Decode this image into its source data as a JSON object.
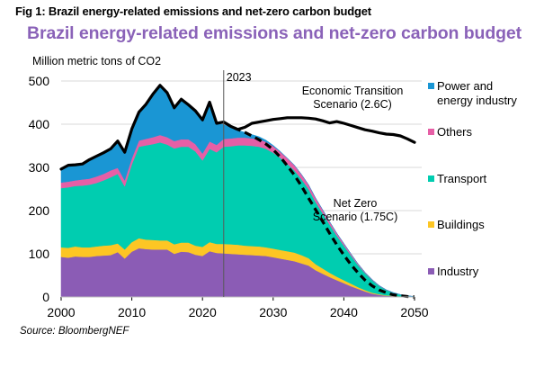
{
  "figure_label": "Fig 1: Brazil energy-related emissions and net-zero carbon budget",
  "source": "Source: BloombergNEF",
  "colors": {
    "title": "#8a62b8",
    "industry": "#8b5cb5",
    "buildings": "#fdc624",
    "transport": "#00cdb0",
    "others": "#e65fa6",
    "power": "#1a96d4",
    "total_line": "#000000",
    "grid": "#d9d9d9",
    "marker_line": "#595959"
  },
  "chart_data": {
    "type": "area",
    "title": "Brazil energy-related emissions and net-zero carbon budget",
    "xlabel": "",
    "ylabel": "Million metric tons of CO2",
    "xlim": [
      2000,
      2050
    ],
    "ylim": [
      0,
      500
    ],
    "x_ticks": [
      "2000",
      "2010",
      "2020",
      "2030",
      "2040",
      "2050"
    ],
    "y_ticks": [
      "0",
      "100",
      "200",
      "300",
      "400",
      "500"
    ],
    "grid": true,
    "legend_position": "right",
    "marker": {
      "x": 2023,
      "label": "2023"
    },
    "x": [
      2000,
      2001,
      2002,
      2003,
      2004,
      2005,
      2006,
      2007,
      2008,
      2009,
      2010,
      2011,
      2012,
      2013,
      2014,
      2015,
      2016,
      2017,
      2018,
      2019,
      2020,
      2021,
      2022,
      2023,
      2024,
      2025,
      2026,
      2027,
      2028,
      2029,
      2030,
      2031,
      2032,
      2033,
      2034,
      2035,
      2036,
      2037,
      2038,
      2039,
      2040,
      2041,
      2042,
      2043,
      2044,
      2045,
      2046,
      2047,
      2048,
      2049,
      2050
    ],
    "series": [
      {
        "name": "Industry",
        "key": "industry",
        "values": [
          93,
          91,
          94,
          93,
          93,
          95,
          96,
          97,
          104,
          89,
          105,
          113,
          111,
          110,
          110,
          110,
          100,
          105,
          104,
          98,
          95,
          106,
          102,
          101,
          100,
          99,
          98,
          97,
          96,
          95,
          92,
          89,
          86,
          83,
          78,
          73,
          62,
          54,
          46,
          39,
          32,
          25,
          19,
          13,
          8,
          5,
          3,
          2,
          1,
          0.5,
          0.2
        ]
      },
      {
        "name": "Buildings",
        "key": "buildings",
        "values": [
          22,
          23,
          23,
          22,
          22,
          22,
          23,
          23,
          20,
          21,
          22,
          23,
          22,
          22,
          21,
          21,
          22,
          21,
          22,
          21,
          21,
          21,
          21,
          22,
          22,
          22,
          21,
          21,
          21,
          20,
          20,
          20,
          20,
          20,
          19,
          17,
          14,
          12,
          10,
          8,
          7,
          6,
          4,
          3,
          2,
          1.5,
          1,
          0.7,
          0.4,
          0.2,
          0.1
        ]
      },
      {
        "name": "Transport",
        "key": "transport",
        "values": [
          137,
          140,
          140,
          143,
          145,
          147,
          151,
          157,
          161,
          146,
          180,
          212,
          218,
          222,
          227,
          222,
          222,
          222,
          222,
          218,
          200,
          216,
          212,
          225,
          227,
          230,
          232,
          232,
          231,
          228,
          222,
          213,
          202,
          190,
          176,
          160,
          144,
          128,
          111,
          95,
          80,
          65,
          51,
          39,
          29,
          19,
          12,
          7,
          4,
          2,
          0.5
        ]
      },
      {
        "name": "Others",
        "key": "others",
        "values": [
          13,
          13,
          13,
          14,
          14,
          15,
          15,
          16,
          14,
          14,
          14,
          14,
          15,
          16,
          17,
          17,
          17,
          17,
          17,
          17,
          16,
          17,
          17,
          18,
          18,
          18,
          18,
          17,
          17,
          16,
          15,
          14,
          13,
          12,
          11,
          10,
          9,
          8,
          7,
          6,
          5,
          4,
          3,
          2,
          1.5,
          1,
          0.7,
          0.5,
          0.3,
          0.2,
          0.1
        ]
      },
      {
        "name": "Power and energy industry",
        "key": "power",
        "values": [
          31,
          38,
          36,
          36,
          44,
          47,
          49,
          50,
          62,
          65,
          68,
          66,
          80,
          100,
          115,
          103,
          77,
          93,
          80,
          77,
          78,
          91,
          50,
          33,
          25,
          17,
          12,
          9,
          6,
          4,
          2,
          1,
          0.5,
          0,
          0,
          0,
          0,
          0,
          0,
          0,
          0,
          0,
          0,
          0,
          0,
          0,
          0,
          0,
          0,
          0,
          0
        ]
      }
    ],
    "scenario_lines": [
      {
        "name": "Economic Transition Scenario (2.6C)",
        "style": "solid",
        "x": [
          2000,
          2001,
          2002,
          2003,
          2004,
          2005,
          2006,
          2007,
          2008,
          2009,
          2010,
          2011,
          2012,
          2013,
          2014,
          2015,
          2016,
          2017,
          2018,
          2019,
          2020,
          2021,
          2022,
          2023,
          2024,
          2025,
          2026,
          2027,
          2028,
          2029,
          2030,
          2031,
          2032,
          2033,
          2034,
          2035,
          2036,
          2037,
          2038,
          2039,
          2040,
          2041,
          2042,
          2043,
          2044,
          2045,
          2046,
          2047,
          2048,
          2049,
          2050
        ],
        "values": [
          296,
          305,
          306,
          308,
          318,
          326,
          334,
          343,
          361,
          335,
          389,
          428,
          446,
          470,
          490,
          473,
          438,
          458,
          445,
          431,
          410,
          451,
          402,
          405,
          395,
          388,
          393,
          402,
          405,
          408,
          411,
          413,
          415,
          415,
          415,
          414,
          412,
          408,
          403,
          406,
          402,
          397,
          392,
          387,
          384,
          380,
          377,
          376,
          373,
          366,
          358
        ]
      },
      {
        "name": "Net Zero Scenario (1.75C)",
        "style": "dashed",
        "x": [
          2023,
          2024,
          2025,
          2026,
          2027,
          2028,
          2029,
          2030,
          2031,
          2032,
          2033,
          2034,
          2035,
          2036,
          2037,
          2038,
          2039,
          2040,
          2041,
          2042,
          2043,
          2044,
          2045,
          2046,
          2047,
          2048,
          2049,
          2050
        ],
        "values": [
          405,
          395,
          388,
          381,
          373,
          364,
          354,
          341,
          324,
          304,
          282,
          257,
          229,
          202,
          175,
          147,
          121,
          97,
          75,
          56,
          39,
          26,
          16,
          10,
          5,
          3,
          1,
          0
        ]
      }
    ],
    "annotations": [
      {
        "text_lines": [
          "Economic Transition",
          "Scenario (2.6C)"
        ]
      },
      {
        "text_lines": [
          "Net Zero",
          "Scenario (1.75C)"
        ]
      }
    ],
    "legend": [
      {
        "key": "power",
        "label_lines": [
          "Power and",
          "energy industry"
        ]
      },
      {
        "key": "others",
        "label_lines": [
          "Others"
        ]
      },
      {
        "key": "transport",
        "label_lines": [
          "Transport"
        ]
      },
      {
        "key": "buildings",
        "label_lines": [
          "Buildings"
        ]
      },
      {
        "key": "industry",
        "label_lines": [
          "Industry"
        ]
      }
    ]
  }
}
